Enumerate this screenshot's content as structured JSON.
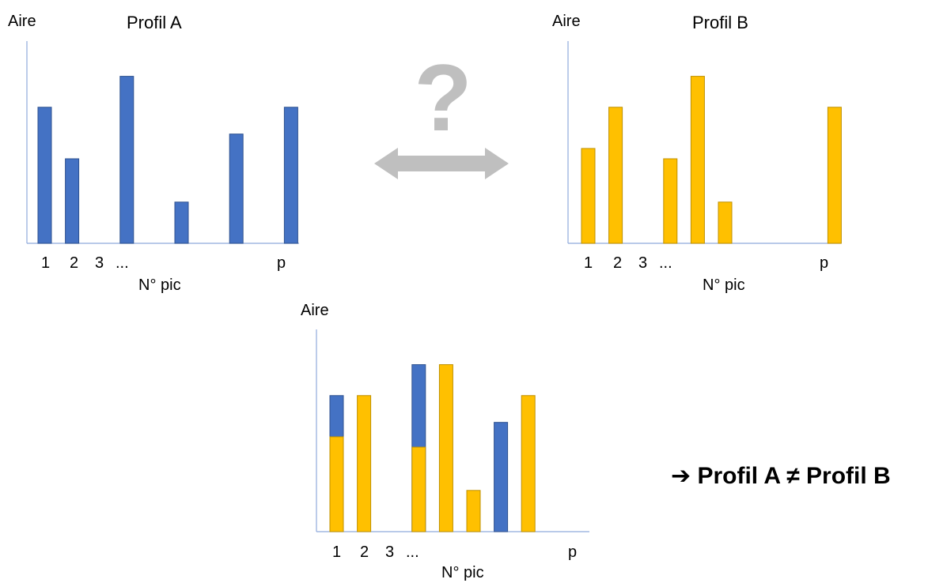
{
  "colors": {
    "blue": "#4472C4",
    "blue_edge": "#2F528F",
    "orange": "#FFC000",
    "orange_edge": "#BF9000",
    "axis": "#8FAADC",
    "arrow": "#BFBFBF"
  },
  "arrow_label": "?",
  "conclusion": "➔ Profil A ≠ Profil B",
  "chart_data": [
    {
      "type": "bar",
      "title": "Profil A",
      "ylabel": "Aire",
      "xlabel": "N° pic",
      "tick_labels": [
        "1",
        "2",
        "3",
        "...",
        "p"
      ],
      "series": [
        {
          "name": "Profil A",
          "color": "#4472C4",
          "values": [
            3.3,
            2.05,
            0,
            4.05,
            0,
            1.0,
            0,
            2.65,
            0,
            3.3
          ]
        }
      ]
    },
    {
      "type": "bar",
      "title": "Profil B",
      "ylabel": "Aire",
      "xlabel": "N° pic",
      "tick_labels": [
        "1",
        "2",
        "3",
        "...",
        "p"
      ],
      "series": [
        {
          "name": "Profil B",
          "color": "#FFC000",
          "values": [
            2.3,
            3.3,
            0,
            2.05,
            4.05,
            1.0,
            0,
            0,
            0,
            3.3
          ]
        }
      ]
    },
    {
      "type": "bar",
      "ylabel": "Aire",
      "xlabel": "N° pic",
      "tick_labels": [
        "1",
        "2",
        "3",
        "...",
        "p"
      ],
      "series": [
        {
          "name": "Profil A",
          "color": "#4472C4",
          "values": [
            3.3,
            0,
            0,
            4.05,
            0,
            0,
            2.65,
            0
          ]
        },
        {
          "name": "Profil B",
          "color": "#FFC000",
          "values": [
            2.3,
            3.3,
            0,
            2.05,
            4.05,
            1.0,
            0,
            3.3
          ]
        }
      ]
    }
  ]
}
